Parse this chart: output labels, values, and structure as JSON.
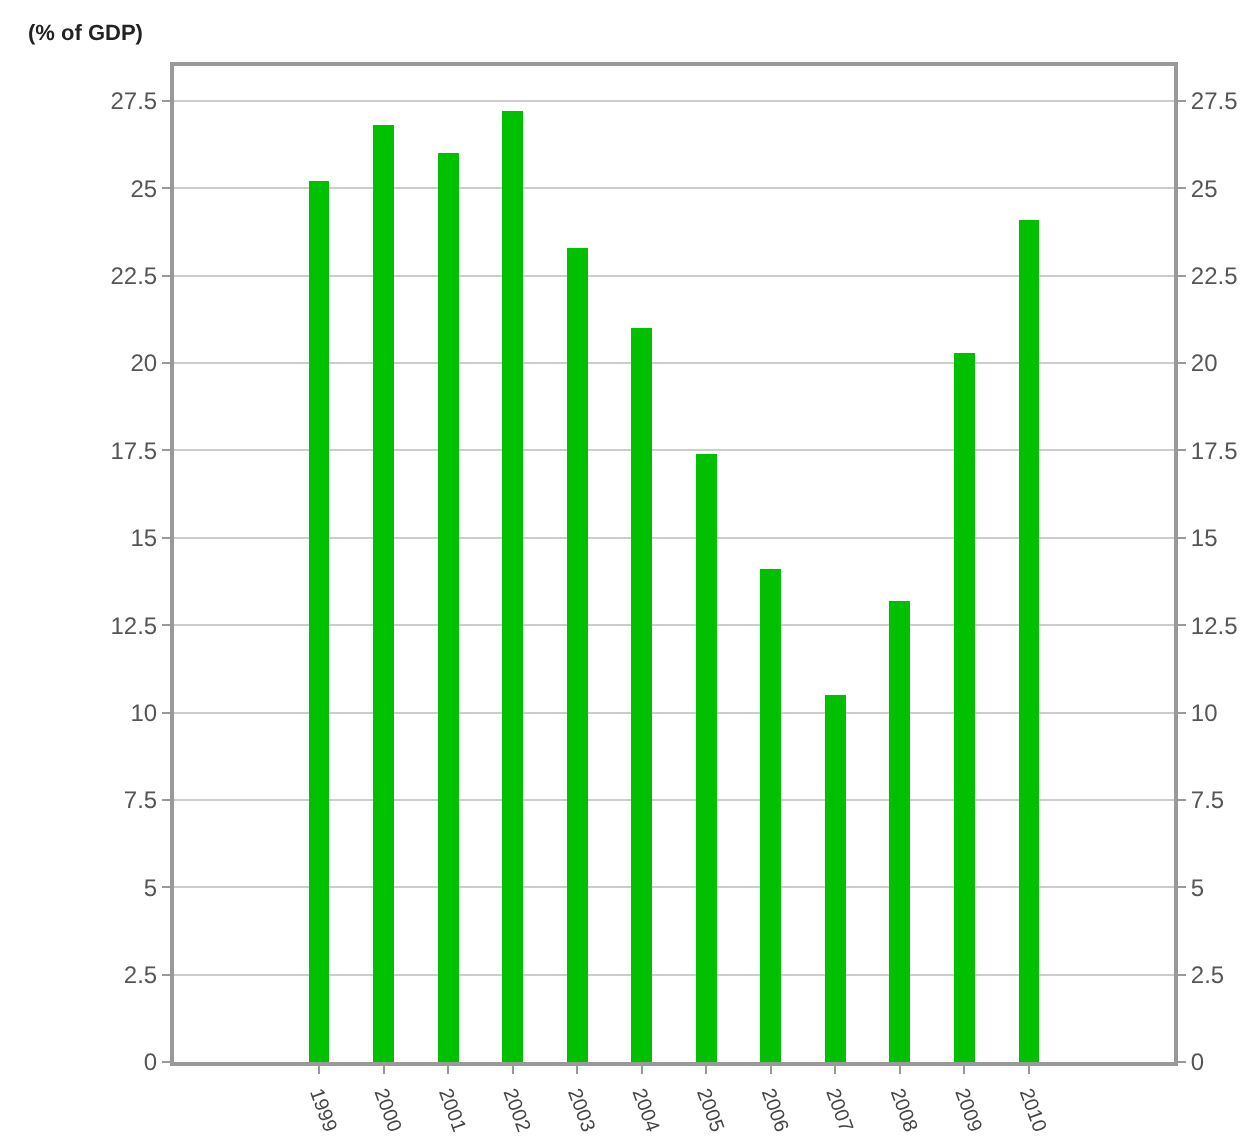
{
  "chart_data": {
    "type": "bar",
    "ylabel": "(% of GDP)",
    "x": [
      1999,
      2000,
      2001,
      2002,
      2003,
      2004,
      2005,
      2006,
      2007,
      2008,
      2009,
      2010
    ],
    "values": [
      25.2,
      26.8,
      26.0,
      27.2,
      23.3,
      21.0,
      17.4,
      14.1,
      10.5,
      13.2,
      20.3,
      24.1
    ],
    "color": "#00c000",
    "xlim": [
      1996.75,
      2012.25
    ],
    "xticks": [
      1999,
      2000,
      2001,
      2002,
      2003,
      2004,
      2005,
      2006,
      2007,
      2008,
      2009,
      2010
    ],
    "ylim": [
      0,
      28.5
    ],
    "yticks": [
      0,
      2.5,
      5,
      7.5,
      10,
      12.5,
      15,
      17.5,
      20,
      22.5,
      25,
      27.5
    ],
    "y2lim": [
      0,
      28.5
    ],
    "y2ticks": [
      0,
      2.5,
      5,
      7.5,
      10,
      12.5,
      15,
      17.5,
      20,
      22.5,
      25,
      27.5
    ],
    "grid": "y"
  }
}
